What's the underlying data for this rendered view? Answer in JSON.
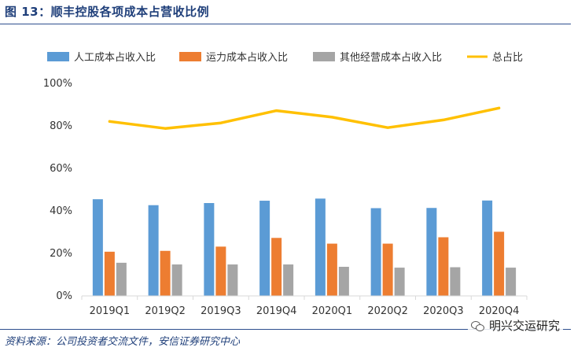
{
  "figure": {
    "title": "图 13：顺丰控股各项成本占营收比例",
    "source": "资料来源：公司投资者交流文件，安信证券研究中心",
    "watermark": "明兴交运研究",
    "watermark_icon": "wechat-icon"
  },
  "chart_data": {
    "type": "bar",
    "title": "",
    "xlabel": "",
    "ylabel": "",
    "categories": [
      "2019Q1",
      "2019Q2",
      "2019Q3",
      "2019Q4",
      "2020Q1",
      "2020Q2",
      "2020Q3",
      "2020Q4"
    ],
    "ylim": [
      0,
      1.0
    ],
    "yticks": [
      0,
      0.2,
      0.4,
      0.6,
      0.8,
      1.0
    ],
    "ytick_labels": [
      "0%",
      "20%",
      "40%",
      "60%",
      "80%",
      "100%"
    ],
    "grid": false,
    "legend_position": "top",
    "series": [
      {
        "name": "人工成本占收入比",
        "type": "bar",
        "color": "#5b9bd5",
        "values": [
          0.455,
          0.427,
          0.437,
          0.448,
          0.458,
          0.413,
          0.414,
          0.449
        ]
      },
      {
        "name": "运力成本占收入比",
        "type": "bar",
        "color": "#ed7d31",
        "values": [
          0.208,
          0.212,
          0.232,
          0.273,
          0.246,
          0.246,
          0.276,
          0.302
        ]
      },
      {
        "name": "其他经营成本占收入比",
        "type": "bar",
        "color": "#a5a5a5",
        "values": [
          0.156,
          0.148,
          0.148,
          0.148,
          0.137,
          0.133,
          0.135,
          0.133
        ]
      },
      {
        "name": "总占比",
        "type": "line",
        "color": "#ffc000",
        "values": [
          0.821,
          0.788,
          0.814,
          0.872,
          0.841,
          0.792,
          0.828,
          0.884
        ]
      }
    ]
  }
}
